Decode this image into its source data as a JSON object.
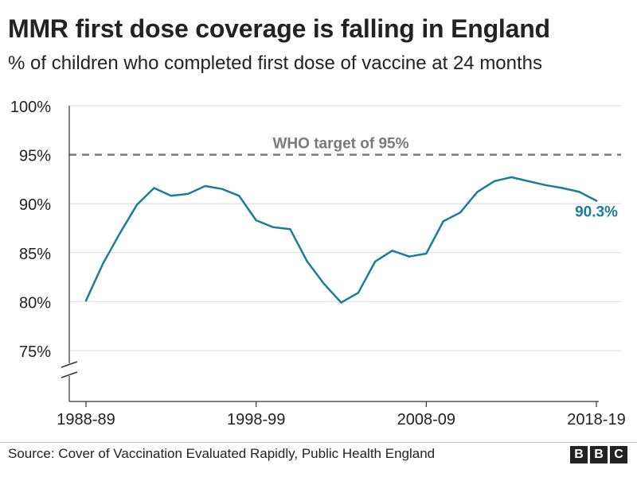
{
  "chart_data": {
    "type": "line",
    "title": "MMR first dose coverage is falling in England",
    "subtitle": "% of children who completed first dose of vaccine at 24 months",
    "x": [
      "1988-89",
      "1989-90",
      "1990-91",
      "1991-92",
      "1992-93",
      "1993-94",
      "1994-95",
      "1995-96",
      "1996-97",
      "1997-98",
      "1998-99",
      "1999-00",
      "2000-01",
      "2001-02",
      "2002-03",
      "2003-04",
      "2004-05",
      "2005-06",
      "2006-07",
      "2007-08",
      "2008-09",
      "2009-10",
      "2010-11",
      "2011-12",
      "2012-13",
      "2013-14",
      "2014-15",
      "2015-16",
      "2016-17",
      "2017-18",
      "2018-19"
    ],
    "x_ticks": [
      "1988-89",
      "1998-99",
      "2008-09",
      "2018-19"
    ],
    "series": [
      {
        "values": [
          80.1,
          83.9,
          87.0,
          89.9,
          91.6,
          90.8,
          91.0,
          91.8,
          91.5,
          90.8,
          88.3,
          87.6,
          87.4,
          84.1,
          81.8,
          79.9,
          80.9,
          84.1,
          85.2,
          84.6,
          84.9,
          88.2,
          89.1,
          91.2,
          92.3,
          92.7,
          92.3,
          91.9,
          91.6,
          91.2,
          90.3
        ]
      }
    ],
    "y_ticks": [
      "100%",
      "95%",
      "90%",
      "85%",
      "80%",
      "75%"
    ],
    "ylim": [
      75,
      100
    ],
    "y_axis_break": true,
    "reference_line": {
      "value": 95,
      "label": "WHO target of 95%"
    },
    "end_label": "90.3%",
    "grid": true,
    "colors": {
      "line": "#1a7d9a",
      "reference": "#7a7a7a",
      "grid": "#dcdcdc",
      "axis": "#333333",
      "text": "#222222"
    }
  },
  "source": "Source: Cover of Vaccination Evaluated Rapidly, Public Health England",
  "logo": {
    "letters": [
      "B",
      "B",
      "C"
    ]
  }
}
